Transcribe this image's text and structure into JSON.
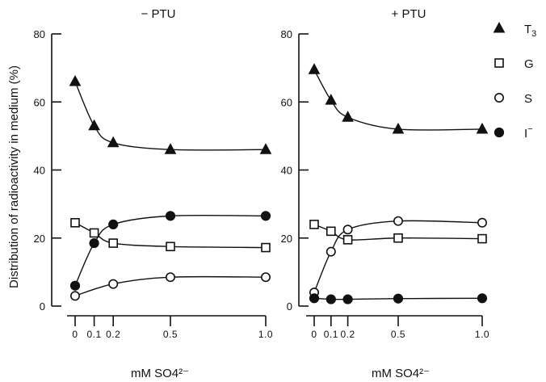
{
  "chart_data": {
    "type": "line",
    "ylabel": "Distribution of radioactivity in medium (%)",
    "xlabel": "mM SO4²⁻",
    "x": [
      0,
      0.1,
      0.2,
      0.5,
      1.0
    ],
    "xtick_labels": [
      "0",
      "0.1",
      "0.2",
      "0.5",
      "1.0"
    ],
    "ylim": [
      0,
      80
    ],
    "yticks": [
      0,
      20,
      40,
      60,
      80
    ],
    "ytick_labels": [
      "0",
      "20",
      "40",
      "60",
      "80"
    ],
    "legend": [
      {
        "key": "T3",
        "label": "T",
        "sub": "3",
        "sup": "",
        "marker": "filled-triangle"
      },
      {
        "key": "G",
        "label": "G",
        "sub": "",
        "sup": "",
        "marker": "open-square"
      },
      {
        "key": "S",
        "label": "S",
        "sub": "",
        "sup": "",
        "marker": "open-circle"
      },
      {
        "key": "I",
        "label": "I",
        "sub": "",
        "sup": "−",
        "marker": "filled-circle"
      }
    ],
    "panels": [
      {
        "title": "− PTU",
        "series": [
          {
            "key": "T3",
            "values": [
              66,
              53,
              48,
              46,
              46
            ]
          },
          {
            "key": "G",
            "values": [
              24.5,
              21.5,
              18.5,
              17.5,
              17.2
            ]
          },
          {
            "key": "S",
            "values": [
              3,
              null,
              6.5,
              8.5,
              8.5
            ]
          },
          {
            "key": "I",
            "values": [
              6,
              18.5,
              24,
              26.5,
              26.5
            ]
          }
        ]
      },
      {
        "title": "+ PTU",
        "series": [
          {
            "key": "T3",
            "values": [
              69.5,
              60.5,
              55.5,
              52,
              52
            ]
          },
          {
            "key": "G",
            "values": [
              24,
              22,
              19.5,
              20,
              19.8
            ]
          },
          {
            "key": "S",
            "values": [
              4,
              16,
              22.5,
              25,
              24.5
            ]
          },
          {
            "key": "I",
            "values": [
              2.3,
              2,
              2,
              2.2,
              2.3
            ]
          }
        ]
      }
    ]
  }
}
